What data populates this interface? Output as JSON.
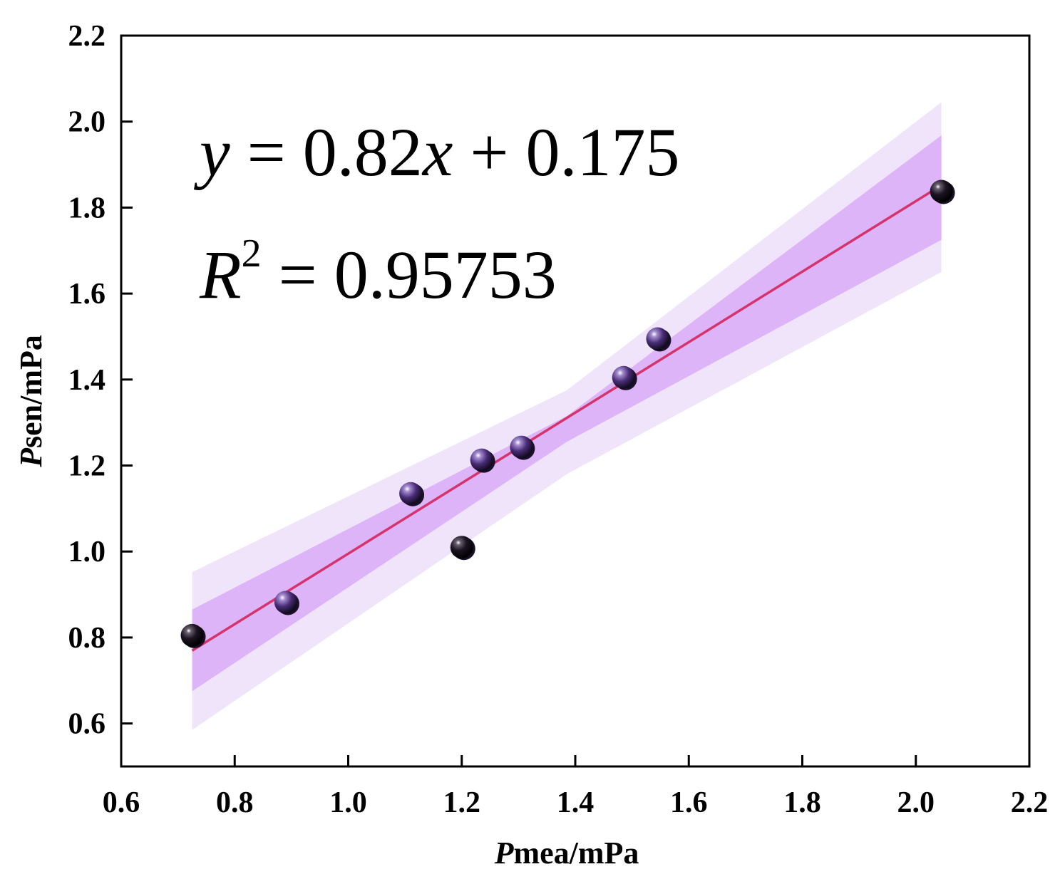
{
  "chart_data": {
    "type": "scatter",
    "xlabel_prefix": "P",
    "xlabel_suffix": "mea/mPa",
    "ylabel_prefix": "P",
    "ylabel_suffix": "sen/mPa",
    "xlim": [
      0.6,
      2.2
    ],
    "ylim": [
      0.5,
      2.2
    ],
    "x_ticks": [
      "0.6",
      "0.8",
      "1.0",
      "1.2",
      "1.4",
      "1.6",
      "1.8",
      "2.0",
      "2.2"
    ],
    "y_ticks": [
      "0.6",
      "0.8",
      "1.0",
      "1.2",
      "1.4",
      "1.6",
      "1.8",
      "2.0",
      "2.2"
    ],
    "points": [
      {
        "x": 0.725,
        "y": 0.805
      },
      {
        "x": 0.89,
        "y": 0.882
      },
      {
        "x": 1.11,
        "y": 1.135
      },
      {
        "x": 1.2,
        "y": 1.01
      },
      {
        "x": 1.235,
        "y": 1.213
      },
      {
        "x": 1.305,
        "y": 1.243
      },
      {
        "x": 1.485,
        "y": 1.405
      },
      {
        "x": 1.545,
        "y": 1.495
      },
      {
        "x": 2.045,
        "y": 1.838
      }
    ],
    "fit": {
      "slope": 0.82,
      "intercept": 0.175,
      "x_range": [
        0.725,
        2.045
      ],
      "r2": 0.95753
    },
    "confidence_band": {
      "x": [
        0.725,
        1.385,
        2.045
      ],
      "lower": [
        0.675,
        1.255,
        1.725
      ],
      "upper": [
        0.865,
        1.315,
        1.968
      ]
    },
    "prediction_band": {
      "x": [
        0.725,
        1.385,
        2.045
      ],
      "lower": [
        0.585,
        1.18,
        1.65
      ],
      "upper": [
        0.952,
        1.375,
        2.045
      ]
    },
    "equation": {
      "y": "y",
      "eq1": " = 0.82",
      "x": "x",
      "eq2": " + 0.175"
    },
    "r2_text": {
      "R": "R",
      "sup": "2",
      "eq": " = 0.95753"
    },
    "colors": {
      "fit_line": "#d6336c",
      "confidence_band": "#dcb4f7",
      "prediction_band": "#f0e4fb",
      "point_fill": "#5a3a8a",
      "point_dark": "#1a1028",
      "axis": "#000000"
    }
  }
}
